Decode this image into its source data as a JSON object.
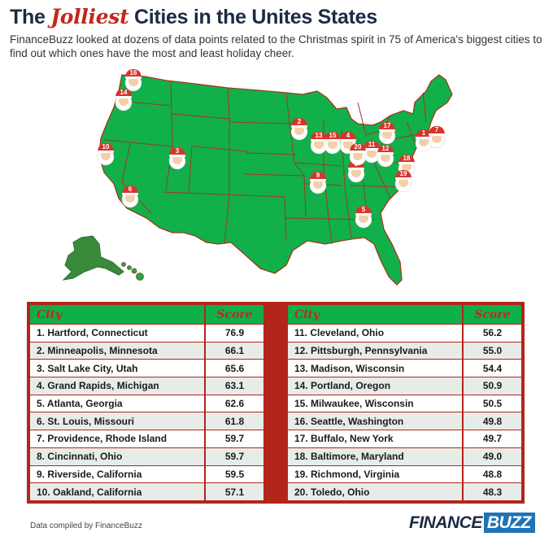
{
  "title": {
    "pre": "The ",
    "script": "Jolliest",
    "post": " Cities in the Unites States"
  },
  "subtitle": "FinanceBuzz looked at dozens of data points related to the Christmas spirit in 75 of America's biggest cities to find out which ones have the most and least holiday cheer.",
  "colors": {
    "map_fill": "#11b04a",
    "state_border": "#a23820",
    "alaska_fill": "#3a8a3c",
    "header_green": "#0eb04a",
    "header_text": "#c3281b",
    "table_border": "#b3251a",
    "title": "#1d2a44",
    "santa_hat": "#d8342b",
    "santa_face": "#f4cfa8",
    "santa_beard": "#ffffff"
  },
  "map_markers": [
    "1",
    "2",
    "3",
    "4",
    "5",
    "6",
    "7",
    "8",
    "9",
    "10",
    "11",
    "12",
    "13",
    "14",
    "15",
    "16",
    "17",
    "18",
    "19",
    "20"
  ],
  "table": {
    "header_city": "City",
    "header_score": "Score",
    "left": [
      {
        "city": "1. Hartford, Connecticut",
        "score": "76.9"
      },
      {
        "city": "2. Minneapolis, Minnesota",
        "score": "66.1"
      },
      {
        "city": "3. Salt Lake City, Utah",
        "score": "65.6"
      },
      {
        "city": "4. Grand Rapids, Michigan",
        "score": "63.1"
      },
      {
        "city": "5. Atlanta, Georgia",
        "score": "62.6"
      },
      {
        "city": "6. St. Louis, Missouri",
        "score": "61.8"
      },
      {
        "city": "7. Providence, Rhode Island",
        "score": "59.7"
      },
      {
        "city": "8. Cincinnati, Ohio",
        "score": "59.7"
      },
      {
        "city": "9. Riverside, California",
        "score": "59.5"
      },
      {
        "city": "10. Oakland, California",
        "score": "57.1"
      }
    ],
    "right": [
      {
        "city": "11. Cleveland, Ohio",
        "score": "56.2"
      },
      {
        "city": "12. Pittsburgh, Pennsylvania",
        "score": "55.0"
      },
      {
        "city": "13. Madison, Wisconsin",
        "score": "54.4"
      },
      {
        "city": "14. Portland, Oregon",
        "score": "50.9"
      },
      {
        "city": "15. Milwaukee, Wisconsin",
        "score": "50.5"
      },
      {
        "city": "16. Seattle, Washington",
        "score": "49.8"
      },
      {
        "city": "17. Buffalo, New York",
        "score": "49.7"
      },
      {
        "city": "18. Baltimore, Maryland",
        "score": "49.0"
      },
      {
        "city": "19. Richmond, Virginia",
        "score": "48.8"
      },
      {
        "city": "20. Toledo, Ohio",
        "score": "48.3"
      }
    ]
  },
  "footer": {
    "note": "Data compiled by FinanceBuzz",
    "logo_a": "FINANCE",
    "logo_b": "BUZZ"
  }
}
